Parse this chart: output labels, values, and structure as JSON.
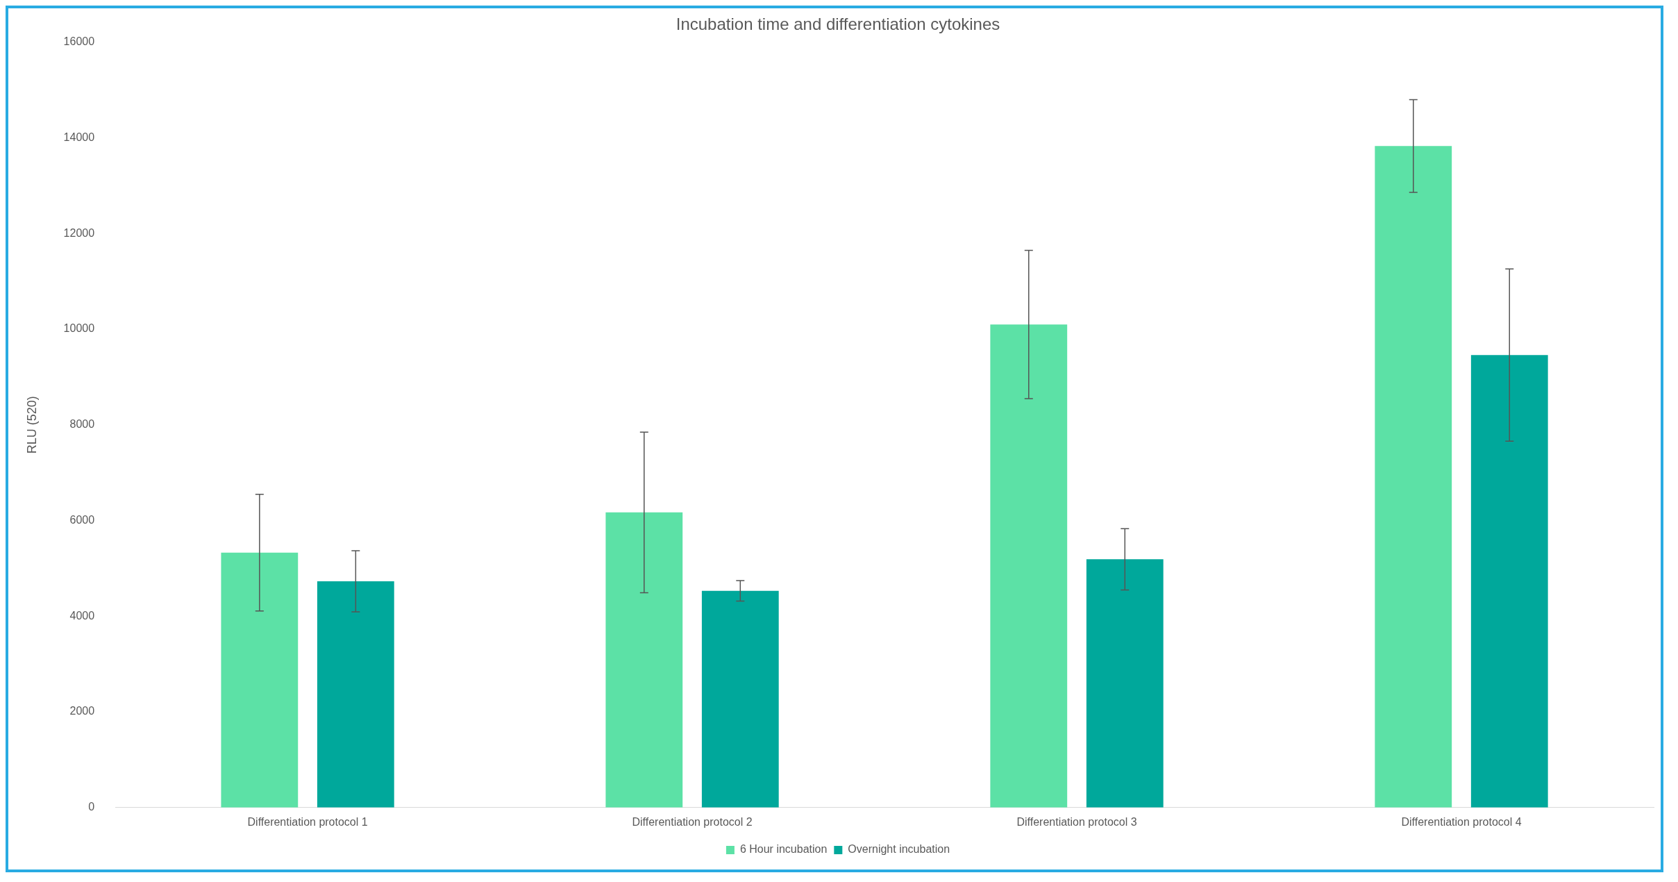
{
  "chart_data": {
    "type": "bar",
    "title": "Incubation time and differentiation cytokines",
    "ylabel": "RLU (520)",
    "categories": [
      "Differentiation protocol 1",
      "Differentiation protocol 2",
      "Differentiation protocol 3",
      "Differentiation protocol 4"
    ],
    "series": [
      {
        "name": "6 Hour incubation",
        "color": "#5ce1a6",
        "values": [
          5330,
          6170,
          10100,
          13830
        ],
        "errors": [
          1220,
          1680,
          1550,
          970
        ]
      },
      {
        "name": "Overnight incubation",
        "color": "#00a89b",
        "values": [
          4730,
          4530,
          5190,
          9460
        ],
        "errors": [
          640,
          215,
          640,
          1800
        ]
      }
    ],
    "ylim": [
      0,
      16000
    ],
    "yticks": [
      0,
      2000,
      4000,
      6000,
      8000,
      10000,
      12000,
      14000,
      16000
    ],
    "grid": false,
    "legend": "bottom"
  }
}
